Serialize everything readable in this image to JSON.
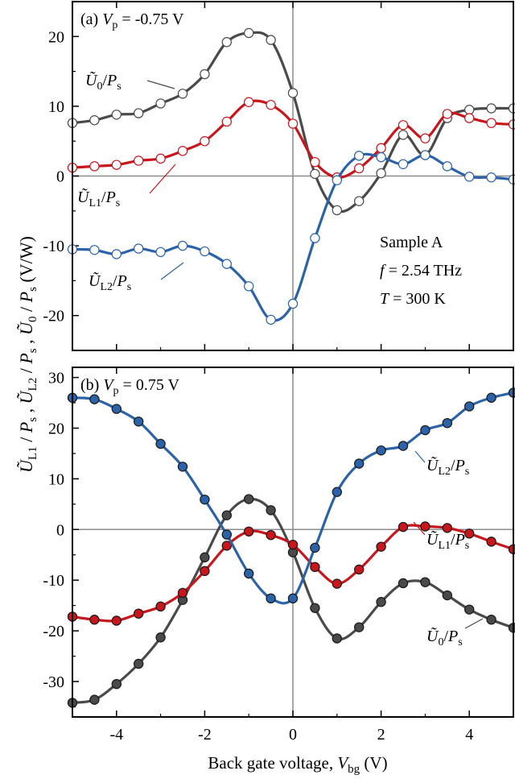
{
  "colors": {
    "gray": "#4a4a4a",
    "red": "#c8161d",
    "blue": "#2c63a8",
    "axis": "#000000",
    "zero_line": "#8c8c8c"
  },
  "y_axis_label": "Ũ_L1 / P_s , Ũ_L2 / P_s , Ũ_0 / P_s   (V/W)",
  "x_axis_label": "Back gate voltage, V_bg (V)",
  "chart_data": [
    {
      "type": "line",
      "panel_label": "(a)",
      "title": "V_p = -0.75 V",
      "xlim": [
        -5,
        5
      ],
      "ylim": [
        -25,
        25
      ],
      "yticks": [
        -20,
        -10,
        0,
        10,
        20
      ],
      "xticks": [
        -4,
        -2,
        0,
        2,
        4
      ],
      "marker": "open",
      "annotation": [
        "Sample A",
        "f = 2.54 THz",
        "T = 300 K"
      ],
      "series": [
        {
          "name": "Ũ_0/P_s",
          "color_key": "gray",
          "x": [
            -5,
            -4.5,
            -4,
            -3.5,
            -3,
            -2.5,
            -2,
            -1.5,
            -1,
            -0.5,
            0,
            0.5,
            1,
            1.5,
            2,
            2.5,
            3,
            3.5,
            4,
            4.5,
            5
          ],
          "y": [
            7.6,
            8.0,
            8.8,
            9.0,
            10.4,
            11.8,
            14.6,
            19.2,
            20.5,
            19.5,
            11.9,
            0.3,
            -4.9,
            -3.6,
            0.4,
            5.9,
            3.0,
            8.3,
            9.5,
            9.7,
            9.7
          ]
        },
        {
          "name": "Ũ_L1/P_s",
          "color_key": "red",
          "x": [
            -5,
            -4.5,
            -4,
            -3.5,
            -3,
            -2.5,
            -2,
            -1.5,
            -1,
            -0.5,
            0,
            0.5,
            1,
            1.5,
            2,
            2.5,
            3,
            3.5,
            4,
            4.5,
            5
          ],
          "y": [
            1.2,
            1.4,
            1.6,
            2.2,
            2.5,
            3.6,
            5.0,
            7.8,
            10.6,
            10.2,
            7.5,
            2.0,
            -0.2,
            1.1,
            4.0,
            7.3,
            5.4,
            8.9,
            8.3,
            7.6,
            7.4
          ]
        },
        {
          "name": "Ũ_L2/P_s",
          "color_key": "blue",
          "x": [
            -5,
            -4.5,
            -4,
            -3.5,
            -3,
            -2.5,
            -2,
            -1.5,
            -1,
            -0.5,
            0,
            0.5,
            1,
            1.5,
            2,
            2.5,
            3,
            3.5,
            4,
            4.5,
            5
          ],
          "y": [
            -10.5,
            -10.6,
            -11.2,
            -10.4,
            -10.9,
            -10.0,
            -10.8,
            -12.6,
            -15.8,
            -20.6,
            -18.3,
            -8.9,
            -0.6,
            2.9,
            2.7,
            1.7,
            3.0,
            1.4,
            -0.1,
            -0.2,
            -0.5
          ]
        }
      ]
    },
    {
      "type": "line",
      "panel_label": "(b)",
      "title": "V_p = 0.75 V",
      "xlim": [
        -5,
        5
      ],
      "ylim": [
        -37,
        32
      ],
      "yticks": [
        -30,
        -20,
        -10,
        0,
        10,
        20,
        30
      ],
      "xticks": [
        -4,
        -2,
        0,
        2,
        4
      ],
      "marker": "filled",
      "series": [
        {
          "name": "Ũ_0/P_s",
          "color_key": "gray",
          "x": [
            -5,
            -4.5,
            -4,
            -3.5,
            -3,
            -2.5,
            -2,
            -1.5,
            -1,
            -0.5,
            0,
            0.5,
            1,
            1.5,
            2,
            2.5,
            3,
            3.5,
            4,
            4.5,
            5
          ],
          "y": [
            -34.2,
            -33.6,
            -30.5,
            -26.5,
            -21.3,
            -13.9,
            -5.5,
            2.8,
            6.0,
            3.8,
            -4.5,
            -15.5,
            -21.5,
            -19.3,
            -14.3,
            -10.6,
            -10.4,
            -13.0,
            -15.8,
            -17.8,
            -19.4
          ]
        },
        {
          "name": "Ũ_L1/P_s",
          "color_key": "red",
          "x": [
            -5,
            -4.5,
            -4,
            -3.5,
            -3,
            -2.5,
            -2,
            -1.5,
            -1,
            -0.5,
            0,
            0.5,
            1,
            1.5,
            2,
            2.5,
            3,
            3.5,
            4,
            4.5,
            5
          ],
          "y": [
            -17.2,
            -17.8,
            -18.0,
            -16.6,
            -15.2,
            -12.5,
            -8.2,
            -3.2,
            -0.4,
            -1.1,
            -3.0,
            -7.4,
            -10.7,
            -7.9,
            -3.4,
            0.5,
            0.6,
            0.3,
            -0.8,
            -2.4,
            -3.9
          ]
        },
        {
          "name": "Ũ_L2/P_s",
          "color_key": "blue",
          "x": [
            -5,
            -4.5,
            -4,
            -3.5,
            -3,
            -2.5,
            -2,
            -1.5,
            -1,
            -0.5,
            0,
            0.5,
            1,
            1.5,
            2,
            2.5,
            3,
            3.5,
            4,
            4.5,
            5
          ],
          "y": [
            26.0,
            25.7,
            23.8,
            21.3,
            16.9,
            12.4,
            5.9,
            -1.0,
            -8.7,
            -13.6,
            -13.6,
            -3.6,
            7.4,
            13.0,
            15.6,
            16.5,
            19.6,
            21.0,
            24.3,
            26.0,
            27.0
          ]
        }
      ]
    }
  ]
}
